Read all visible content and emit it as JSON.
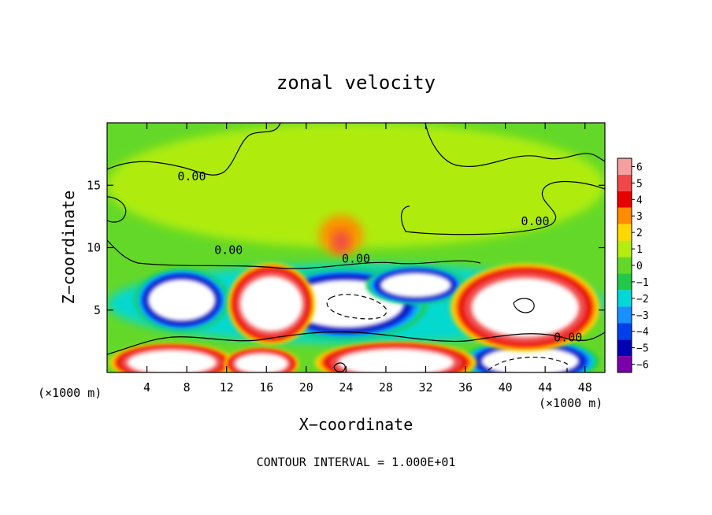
{
  "chart_data": {
    "type": "heatmap",
    "title": "zonal velocity",
    "xlabel": "X−coordinate",
    "ylabel": "Z−coordinate",
    "x_unit_left": "(×1000 m)",
    "x_unit_right": "(×1000 m)",
    "footer": "CONTOUR INTERVAL = 1.000E+01",
    "xlim": [
      0,
      50
    ],
    "ylim": [
      0,
      20
    ],
    "x_ticks": [
      4,
      8,
      12,
      16,
      20,
      24,
      28,
      32,
      36,
      40,
      44,
      48
    ],
    "x_tick_labels": [
      "4",
      "8",
      "12",
      "16",
      "20",
      "24",
      "28",
      "32",
      "36",
      "40",
      "44",
      "48"
    ],
    "y_ticks": [
      5,
      10,
      15
    ],
    "y_tick_labels": [
      "5",
      "10",
      "15"
    ],
    "colorbar": {
      "levels": [
        6,
        5,
        4,
        3,
        2,
        1,
        0,
        -1,
        -2,
        -3,
        -4,
        -5,
        -6
      ],
      "labels": [
        "6",
        "5",
        "4",
        "3",
        "2",
        "1",
        "0",
        "−1",
        "−2",
        "−3",
        "−4",
        "−5",
        "−6"
      ],
      "colors": [
        "#f4a0a0",
        "#f04848",
        "#e60000",
        "#ff8c00",
        "#ffd800",
        "#b4ee10",
        "#64d828",
        "#22c84a",
        "#00d8d8",
        "#1890ff",
        "#0040e8",
        "#0000b0",
        "#7a00a8"
      ]
    },
    "contour_labels": [
      {
        "text": "0.00",
        "x": 8.5,
        "z": 15.4
      },
      {
        "text": "0.00",
        "x": 43.0,
        "z": 11.8
      },
      {
        "text": "0.00",
        "x": 12.2,
        "z": 9.5
      },
      {
        "text": "0.00",
        "x": 25.0,
        "z": 8.8
      },
      {
        "text": "0.00",
        "x": 46.3,
        "z": 2.5
      }
    ],
    "regions": [
      {
        "name": "background",
        "value": 0.5,
        "x": 25,
        "z": 15,
        "rx": 25,
        "rz": 5
      },
      {
        "name": "jet-core",
        "value": 2.5,
        "x": 23.5,
        "z": 11.0,
        "rx": 2.2,
        "rz": 1.6
      },
      {
        "name": "jet-peak",
        "value": 5,
        "x": 23.5,
        "z": 10.5,
        "rx": 0.9,
        "rz": 0.9
      },
      {
        "name": "low-level-band",
        "value": -2,
        "x": 25,
        "z": 5.5,
        "rx": 25,
        "rz": 3.2
      },
      {
        "name": "west-negative-cell",
        "value": -6,
        "x": 7.5,
        "z": 5.8,
        "rx": 3.8,
        "rz": 2.0
      },
      {
        "name": "center-negative-cell",
        "value": -6,
        "x": 24,
        "z": 5.5,
        "rx": 6.5,
        "rz": 2.3
      },
      {
        "name": "east-upper-negative-cell",
        "value": -6,
        "x": 31,
        "z": 7.0,
        "rx": 4.0,
        "rz": 1.2
      },
      {
        "name": "east-lower-negative-cell",
        "value": -6,
        "x": 42.5,
        "z": 0.9,
        "rx": 5.5,
        "rz": 1.4
      },
      {
        "name": "west-positive-cell",
        "value": 6,
        "x": 16.5,
        "z": 5.5,
        "rx": 3.5,
        "rz": 2.6
      },
      {
        "name": "east-positive-cell",
        "value": 6,
        "x": 42.0,
        "z": 5.2,
        "rx": 6.0,
        "rz": 2.8
      },
      {
        "name": "bottom-positive-cell-1",
        "value": 6,
        "x": 6.5,
        "z": 0.8,
        "rx": 5.0,
        "rz": 1.2
      },
      {
        "name": "bottom-positive-cell-2",
        "value": 6,
        "x": 15.5,
        "z": 0.7,
        "rx": 3.0,
        "rz": 1.0
      },
      {
        "name": "bottom-positive-cell-3",
        "value": 6,
        "x": 29,
        "z": 0.8,
        "rx": 6.5,
        "rz": 1.3
      }
    ]
  }
}
